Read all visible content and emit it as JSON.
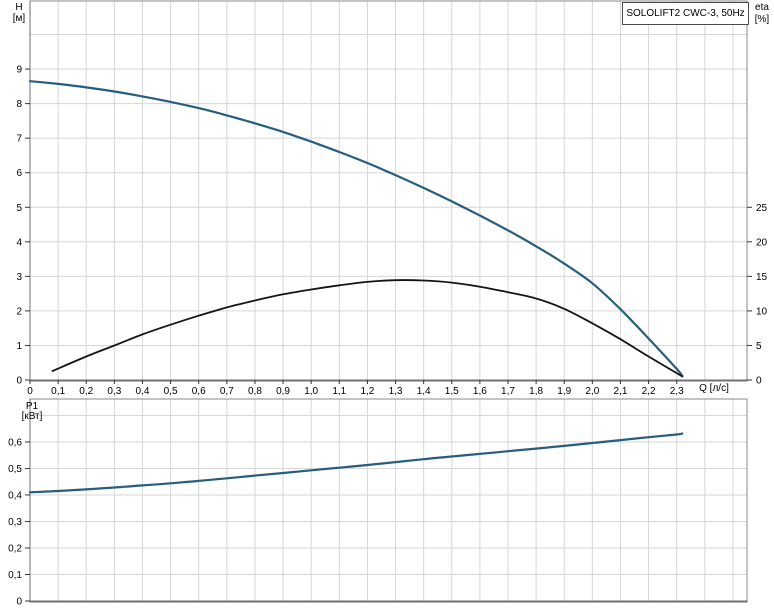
{
  "title": "SOLOLIFT2 CWC-3, 50Hz",
  "colors": {
    "background": "#ffffff",
    "grid": "#d6d6d6",
    "panel_border": "#8a8a8a",
    "axis_line": "#707070",
    "tick": "#333333",
    "text": "#000000",
    "curve_blue": "#275d7d",
    "curve_black": "#141414"
  },
  "chart_data": [
    {
      "id": "head-efficiency-panel",
      "type": "line",
      "title": "SOLOLIFT2 CWC-3, 50Hz",
      "x_axis": {
        "label": "Q [л/с]",
        "min": 0,
        "max": 2.55,
        "grid_step": 0.1,
        "tick_values": [
          0,
          0.1,
          0.2,
          0.3,
          0.4,
          0.5,
          0.6,
          0.7,
          0.8,
          0.9,
          1.0,
          1.1,
          1.2,
          1.3,
          1.4,
          1.5,
          1.6,
          1.7,
          1.8,
          1.9,
          2.0,
          2.1,
          2.2,
          2.3
        ],
        "tick_labels": [
          "0",
          "0,1",
          "0,2",
          "0,3",
          "0,4",
          "0,5",
          "0,6",
          "0,7",
          "0,8",
          "0,9",
          "1,0",
          "1,1",
          "1,2",
          "1,3",
          "1,4",
          "1,5",
          "1,6",
          "1,7",
          "1,8",
          "1,9",
          "2,0",
          "2,1",
          "2,2",
          "2,3"
        ]
      },
      "y_left": {
        "label": "H",
        "unit": "[м]",
        "min": 0,
        "max": 10.97,
        "grid_step": 1,
        "tick_values": [
          0,
          1,
          2,
          3,
          4,
          5,
          6,
          7,
          8,
          9
        ],
        "tick_labels": [
          "0",
          "1",
          "2",
          "3",
          "4",
          "5",
          "6",
          "7",
          "8",
          "9"
        ]
      },
      "y_right": {
        "label": "eta",
        "unit": "[%]",
        "min": 0,
        "max": 54.85,
        "tick_values": [
          0,
          5,
          10,
          15,
          20,
          25
        ],
        "tick_labels": [
          "0",
          "5",
          "10",
          "15",
          "20",
          "25"
        ]
      },
      "series": [
        {
          "name": "head-curve",
          "axis": "left",
          "color": "#275d7d",
          "points": [
            [
              0,
              8.65
            ],
            [
              0.1,
              8.57
            ],
            [
              0.2,
              8.47
            ],
            [
              0.3,
              8.35
            ],
            [
              0.4,
              8.21
            ],
            [
              0.5,
              8.05
            ],
            [
              0.6,
              7.87
            ],
            [
              0.7,
              7.66
            ],
            [
              0.8,
              7.43
            ],
            [
              0.9,
              7.18
            ],
            [
              1.0,
              6.9
            ],
            [
              1.1,
              6.6
            ],
            [
              1.2,
              6.28
            ],
            [
              1.3,
              5.93
            ],
            [
              1.4,
              5.56
            ],
            [
              1.5,
              5.17
            ],
            [
              1.6,
              4.76
            ],
            [
              1.7,
              4.33
            ],
            [
              1.8,
              3.87
            ],
            [
              1.9,
              3.37
            ],
            [
              2.0,
              2.8
            ],
            [
              2.1,
              2.05
            ],
            [
              2.2,
              1.2
            ],
            [
              2.3,
              0.32
            ],
            [
              2.32,
              0.12
            ]
          ]
        },
        {
          "name": "efficiency-curve",
          "axis": "right",
          "color": "#141414",
          "points": [
            [
              0.08,
              1.3
            ],
            [
              0.2,
              3.4
            ],
            [
              0.3,
              5.0
            ],
            [
              0.4,
              6.6
            ],
            [
              0.5,
              8.0
            ],
            [
              0.6,
              9.3
            ],
            [
              0.7,
              10.5
            ],
            [
              0.8,
              11.5
            ],
            [
              0.9,
              12.4
            ],
            [
              1.0,
              13.1
            ],
            [
              1.1,
              13.7
            ],
            [
              1.2,
              14.2
            ],
            [
              1.3,
              14.45
            ],
            [
              1.4,
              14.4
            ],
            [
              1.5,
              14.1
            ],
            [
              1.6,
              13.5
            ],
            [
              1.7,
              12.7
            ],
            [
              1.8,
              11.8
            ],
            [
              1.9,
              10.3
            ],
            [
              2.0,
              8.2
            ],
            [
              2.1,
              5.9
            ],
            [
              2.2,
              3.4
            ],
            [
              2.3,
              1.0
            ],
            [
              2.32,
              0.5
            ]
          ]
        }
      ]
    },
    {
      "id": "power-panel",
      "type": "line",
      "x_axis": {
        "label": "",
        "min": 0,
        "max": 2.55,
        "grid_step": 0.1,
        "tick_values": [],
        "tick_labels": []
      },
      "y_left": {
        "label": "P1",
        "unit": "[кВт]",
        "min": 0,
        "max": 0.762,
        "grid_step": 0.1,
        "tick_values": [
          0,
          0.1,
          0.2,
          0.3,
          0.4,
          0.5,
          0.6
        ],
        "tick_labels": [
          "0",
          "0,1",
          "0,2",
          "0,3",
          "0,4",
          "0,5",
          "0,6"
        ]
      },
      "series": [
        {
          "name": "power-curve",
          "axis": "left",
          "color": "#275d7d",
          "points": [
            [
              0,
              0.41
            ],
            [
              0.1,
              0.415
            ],
            [
              0.2,
              0.421
            ],
            [
              0.3,
              0.428
            ],
            [
              0.4,
              0.436
            ],
            [
              0.5,
              0.444
            ],
            [
              0.6,
              0.453
            ],
            [
              0.7,
              0.463
            ],
            [
              0.8,
              0.473
            ],
            [
              0.9,
              0.483
            ],
            [
              1.0,
              0.493
            ],
            [
              1.1,
              0.503
            ],
            [
              1.2,
              0.513
            ],
            [
              1.3,
              0.524
            ],
            [
              1.4,
              0.535
            ],
            [
              1.5,
              0.545
            ],
            [
              1.6,
              0.555
            ],
            [
              1.7,
              0.565
            ],
            [
              1.8,
              0.575
            ],
            [
              1.9,
              0.585
            ],
            [
              2.0,
              0.596
            ],
            [
              2.1,
              0.607
            ],
            [
              2.2,
              0.618
            ],
            [
              2.3,
              0.628
            ],
            [
              2.32,
              0.632
            ]
          ]
        }
      ]
    }
  ]
}
